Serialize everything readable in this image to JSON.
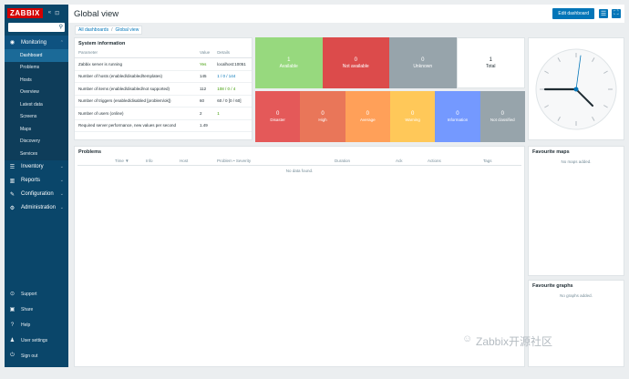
{
  "sidebar": {
    "logo": "ZABBIX",
    "collapse_icons": [
      "«",
      "⊡"
    ],
    "search_placeholder": "",
    "monitoring": {
      "label": "Monitoring",
      "icon": "eye-icon"
    },
    "monitoring_items": [
      "Dashboard",
      "Problems",
      "Hosts",
      "Overview",
      "Latest data",
      "Screens",
      "Maps",
      "Discovery",
      "Services"
    ],
    "sections": [
      {
        "label": "Inventory",
        "icon": "list-icon"
      },
      {
        "label": "Reports",
        "icon": "chart-icon"
      },
      {
        "label": "Configuration",
        "icon": "wrench-icon"
      },
      {
        "label": "Administration",
        "icon": "gear-icon"
      }
    ],
    "bottom": [
      {
        "label": "Support",
        "icon": "support-icon"
      },
      {
        "label": "Share",
        "icon": "share-icon"
      },
      {
        "label": "Help",
        "icon": "help-icon"
      },
      {
        "label": "User settings",
        "icon": "user-icon"
      },
      {
        "label": "Sign out",
        "icon": "power-icon"
      }
    ]
  },
  "header": {
    "title": "Global view",
    "edit_button": "Edit dashboard",
    "breadcrumb": [
      "All dashboards",
      "Global view"
    ]
  },
  "system_info": {
    "title": "System information",
    "columns": [
      "Parameter",
      "Value",
      "Details"
    ],
    "rows": [
      [
        "Zabbix server is running",
        "Yes",
        "localhost:10051"
      ],
      [
        "Number of hosts (enabled/disabled/templates)",
        "145",
        "1 / 0 / 144"
      ],
      [
        "Number of items (enabled/disabled/not supported)",
        "112",
        "108 / 0 / 4"
      ],
      [
        "Number of triggers (enabled/disabled [problem/ok])",
        "60",
        "60 / 0 [0 / 60]"
      ],
      [
        "Number of users (online)",
        "2",
        "1"
      ],
      [
        "Required server performance, new values per second",
        "1.49",
        ""
      ]
    ]
  },
  "host_availability": [
    {
      "value": "1",
      "label": "Available",
      "color": "#97d97e"
    },
    {
      "value": "0",
      "label": "Not available",
      "color": "#dc4b4b"
    },
    {
      "value": "0",
      "label": "Unknown",
      "color": "#97a4ab"
    },
    {
      "value": "1",
      "label": "Total",
      "color": "#ffffff"
    }
  ],
  "problems_by_severity": [
    {
      "value": "0",
      "label": "Disaster",
      "color": "#e45959"
    },
    {
      "value": "0",
      "label": "High",
      "color": "#e97659"
    },
    {
      "value": "0",
      "label": "Average",
      "color": "#ffa059"
    },
    {
      "value": "0",
      "label": "Warning",
      "color": "#ffc859"
    },
    {
      "value": "0",
      "label": "Information",
      "color": "#7499ff"
    },
    {
      "value": "0",
      "label": "Not classified",
      "color": "#97a4ab"
    }
  ],
  "problems": {
    "title": "Problems",
    "columns": [
      "Time ▼",
      "Info",
      "Host",
      "Problem • Severity",
      "Duration",
      "Ack",
      "Actions",
      "Tags"
    ],
    "empty": "No data found."
  },
  "favourite_maps": {
    "title": "Favourite maps",
    "empty": "No maps added."
  },
  "favourite_graphs": {
    "title": "Favourite graphs",
    "empty": "No graphs added."
  },
  "watermark": "Zabbix开源社区"
}
